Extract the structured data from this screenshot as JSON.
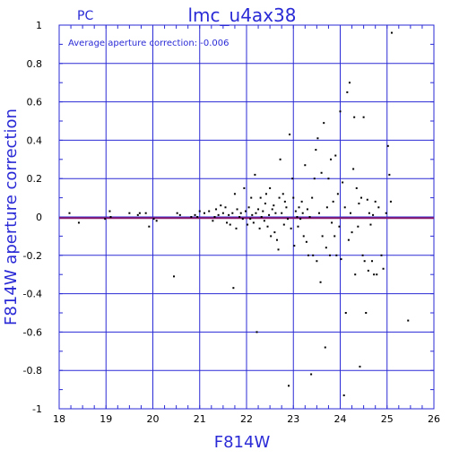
{
  "chart_data": {
    "type": "scatter",
    "title": "lmc_u4ax38",
    "subtitle": "PC",
    "annotation": "Average aperture correction: -0.006",
    "xlabel": "F814W",
    "ylabel": "F814W aperture correction",
    "xlim": [
      18,
      26
    ],
    "ylim": [
      -1,
      1
    ],
    "xticks": [
      "18",
      "19",
      "20",
      "21",
      "22",
      "23",
      "24",
      "25",
      "26"
    ],
    "yticks": [
      "1",
      "0.8",
      "0.6",
      "0.4",
      "0.2",
      "0",
      "-0.2",
      "-0.4",
      "-0.6",
      "-0.8",
      "-1"
    ],
    "grid": true,
    "reference_line": {
      "y": -0.006,
      "color": "#8b1a6b"
    },
    "colors": {
      "axes": "#2a2ad6",
      "points": "#000000"
    },
    "points": [
      [
        18.22,
        0.02
      ],
      [
        18.42,
        -0.03
      ],
      [
        18.98,
        -0.01
      ],
      [
        19.08,
        0.03
      ],
      [
        19.1,
        0.0
      ],
      [
        19.5,
        0.02
      ],
      [
        19.68,
        0.01
      ],
      [
        19.72,
        0.02
      ],
      [
        19.85,
        0.02
      ],
      [
        19.92,
        -0.05
      ],
      [
        20.02,
        -0.01
      ],
      [
        20.08,
        -0.02
      ],
      [
        20.45,
        -0.31
      ],
      [
        20.52,
        0.02
      ],
      [
        20.58,
        0.01
      ],
      [
        20.82,
        0.0
      ],
      [
        20.9,
        0.01
      ],
      [
        20.95,
        0.0
      ],
      [
        21.0,
        0.03
      ],
      [
        21.1,
        0.02
      ],
      [
        21.2,
        0.03
      ],
      [
        21.28,
        -0.02
      ],
      [
        21.32,
        0.0
      ],
      [
        21.35,
        0.04
      ],
      [
        21.4,
        0.01
      ],
      [
        21.45,
        0.06
      ],
      [
        21.5,
        0.02
      ],
      [
        21.55,
        0.05
      ],
      [
        21.58,
        -0.03
      ],
      [
        21.62,
        0.01
      ],
      [
        21.65,
        -0.04
      ],
      [
        21.7,
        0.02
      ],
      [
        21.72,
        -0.37
      ],
      [
        21.75,
        0.12
      ],
      [
        21.78,
        -0.06
      ],
      [
        21.8,
        0.04
      ],
      [
        21.85,
        0.0
      ],
      [
        21.88,
        0.02
      ],
      [
        21.92,
        -0.01
      ],
      [
        21.95,
        0.15
      ],
      [
        21.98,
        0.03
      ],
      [
        22.02,
        -0.04
      ],
      [
        22.05,
        0.05
      ],
      [
        22.08,
        -0.01
      ],
      [
        22.1,
        0.1
      ],
      [
        22.12,
        0.01
      ],
      [
        22.15,
        -0.03
      ],
      [
        22.18,
        0.22
      ],
      [
        22.2,
        0.02
      ],
      [
        22.22,
        -0.6
      ],
      [
        22.25,
        0.04
      ],
      [
        22.28,
        -0.06
      ],
      [
        22.3,
        0.1
      ],
      [
        22.32,
        0.0
      ],
      [
        22.35,
        0.03
      ],
      [
        22.38,
        -0.02
      ],
      [
        22.4,
        0.07
      ],
      [
        22.42,
        0.12
      ],
      [
        22.45,
        -0.05
      ],
      [
        22.48,
        0.01
      ],
      [
        22.5,
        0.15
      ],
      [
        22.52,
        -0.1
      ],
      [
        22.55,
        0.04
      ],
      [
        22.58,
        0.06
      ],
      [
        22.6,
        -0.08
      ],
      [
        22.62,
        0.02
      ],
      [
        22.65,
        -0.12
      ],
      [
        22.68,
        -0.17
      ],
      [
        22.7,
        0.1
      ],
      [
        22.72,
        0.3
      ],
      [
        22.75,
        0.02
      ],
      [
        22.78,
        0.12
      ],
      [
        22.8,
        -0.04
      ],
      [
        22.82,
        0.08
      ],
      [
        22.85,
        0.05
      ],
      [
        22.88,
        -0.01
      ],
      [
        22.9,
        -0.88
      ],
      [
        22.92,
        0.43
      ],
      [
        22.95,
        -0.06
      ],
      [
        22.98,
        0.2
      ],
      [
        23.0,
        0.1
      ],
      [
        23.02,
        -0.15
      ],
      [
        23.05,
        0.03
      ],
      [
        23.08,
        0.0
      ],
      [
        23.1,
        -0.05
      ],
      [
        23.12,
        0.05
      ],
      [
        23.15,
        -0.01
      ],
      [
        23.18,
        0.08
      ],
      [
        23.2,
        0.02
      ],
      [
        23.22,
        -0.1
      ],
      [
        23.25,
        0.27
      ],
      [
        23.28,
        -0.13
      ],
      [
        23.3,
        0.04
      ],
      [
        23.32,
        -0.2
      ],
      [
        23.35,
        0.0
      ],
      [
        23.38,
        -0.82
      ],
      [
        23.4,
        0.1
      ],
      [
        23.42,
        -0.2
      ],
      [
        23.45,
        0.2
      ],
      [
        23.48,
        0.35
      ],
      [
        23.5,
        -0.23
      ],
      [
        23.52,
        0.41
      ],
      [
        23.55,
        0.02
      ],
      [
        23.58,
        -0.34
      ],
      [
        23.6,
        0.23
      ],
      [
        23.62,
        -0.1
      ],
      [
        23.65,
        0.49
      ],
      [
        23.68,
        -0.68
      ],
      [
        23.7,
        -0.16
      ],
      [
        23.72,
        0.05
      ],
      [
        23.75,
        0.2
      ],
      [
        23.78,
        -0.2
      ],
      [
        23.8,
        0.3
      ],
      [
        23.82,
        -0.03
      ],
      [
        23.85,
        0.08
      ],
      [
        23.88,
        -0.1
      ],
      [
        23.9,
        0.32
      ],
      [
        23.92,
        -0.2
      ],
      [
        23.95,
        0.12
      ],
      [
        23.98,
        -0.05
      ],
      [
        24.0,
        0.55
      ],
      [
        24.02,
        -0.22
      ],
      [
        24.05,
        0.18
      ],
      [
        24.08,
        -0.93
      ],
      [
        24.1,
        0.05
      ],
      [
        24.12,
        -0.5
      ],
      [
        24.15,
        0.65
      ],
      [
        24.18,
        -0.12
      ],
      [
        24.2,
        0.7
      ],
      [
        24.22,
        0.02
      ],
      [
        24.25,
        -0.08
      ],
      [
        24.28,
        0.25
      ],
      [
        24.3,
        0.52
      ],
      [
        24.32,
        -0.3
      ],
      [
        24.35,
        0.15
      ],
      [
        24.38,
        -0.05
      ],
      [
        24.4,
        0.07
      ],
      [
        24.42,
        -0.78
      ],
      [
        24.45,
        0.1
      ],
      [
        24.48,
        -0.2
      ],
      [
        24.5,
        0.52
      ],
      [
        24.52,
        -0.23
      ],
      [
        24.55,
        -0.5
      ],
      [
        24.58,
        0.09
      ],
      [
        24.6,
        -0.28
      ],
      [
        24.62,
        0.02
      ],
      [
        24.65,
        -0.04
      ],
      [
        24.68,
        -0.23
      ],
      [
        24.7,
        0.01
      ],
      [
        24.72,
        -0.3
      ],
      [
        24.75,
        0.08
      ],
      [
        24.78,
        -0.3
      ],
      [
        24.82,
        0.05
      ],
      [
        24.88,
        -0.2
      ],
      [
        24.92,
        -0.27
      ],
      [
        24.98,
        0.02
      ],
      [
        25.02,
        0.37
      ],
      [
        25.05,
        0.22
      ],
      [
        25.08,
        0.08
      ],
      [
        25.1,
        0.96
      ],
      [
        25.45,
        -0.54
      ]
    ]
  }
}
